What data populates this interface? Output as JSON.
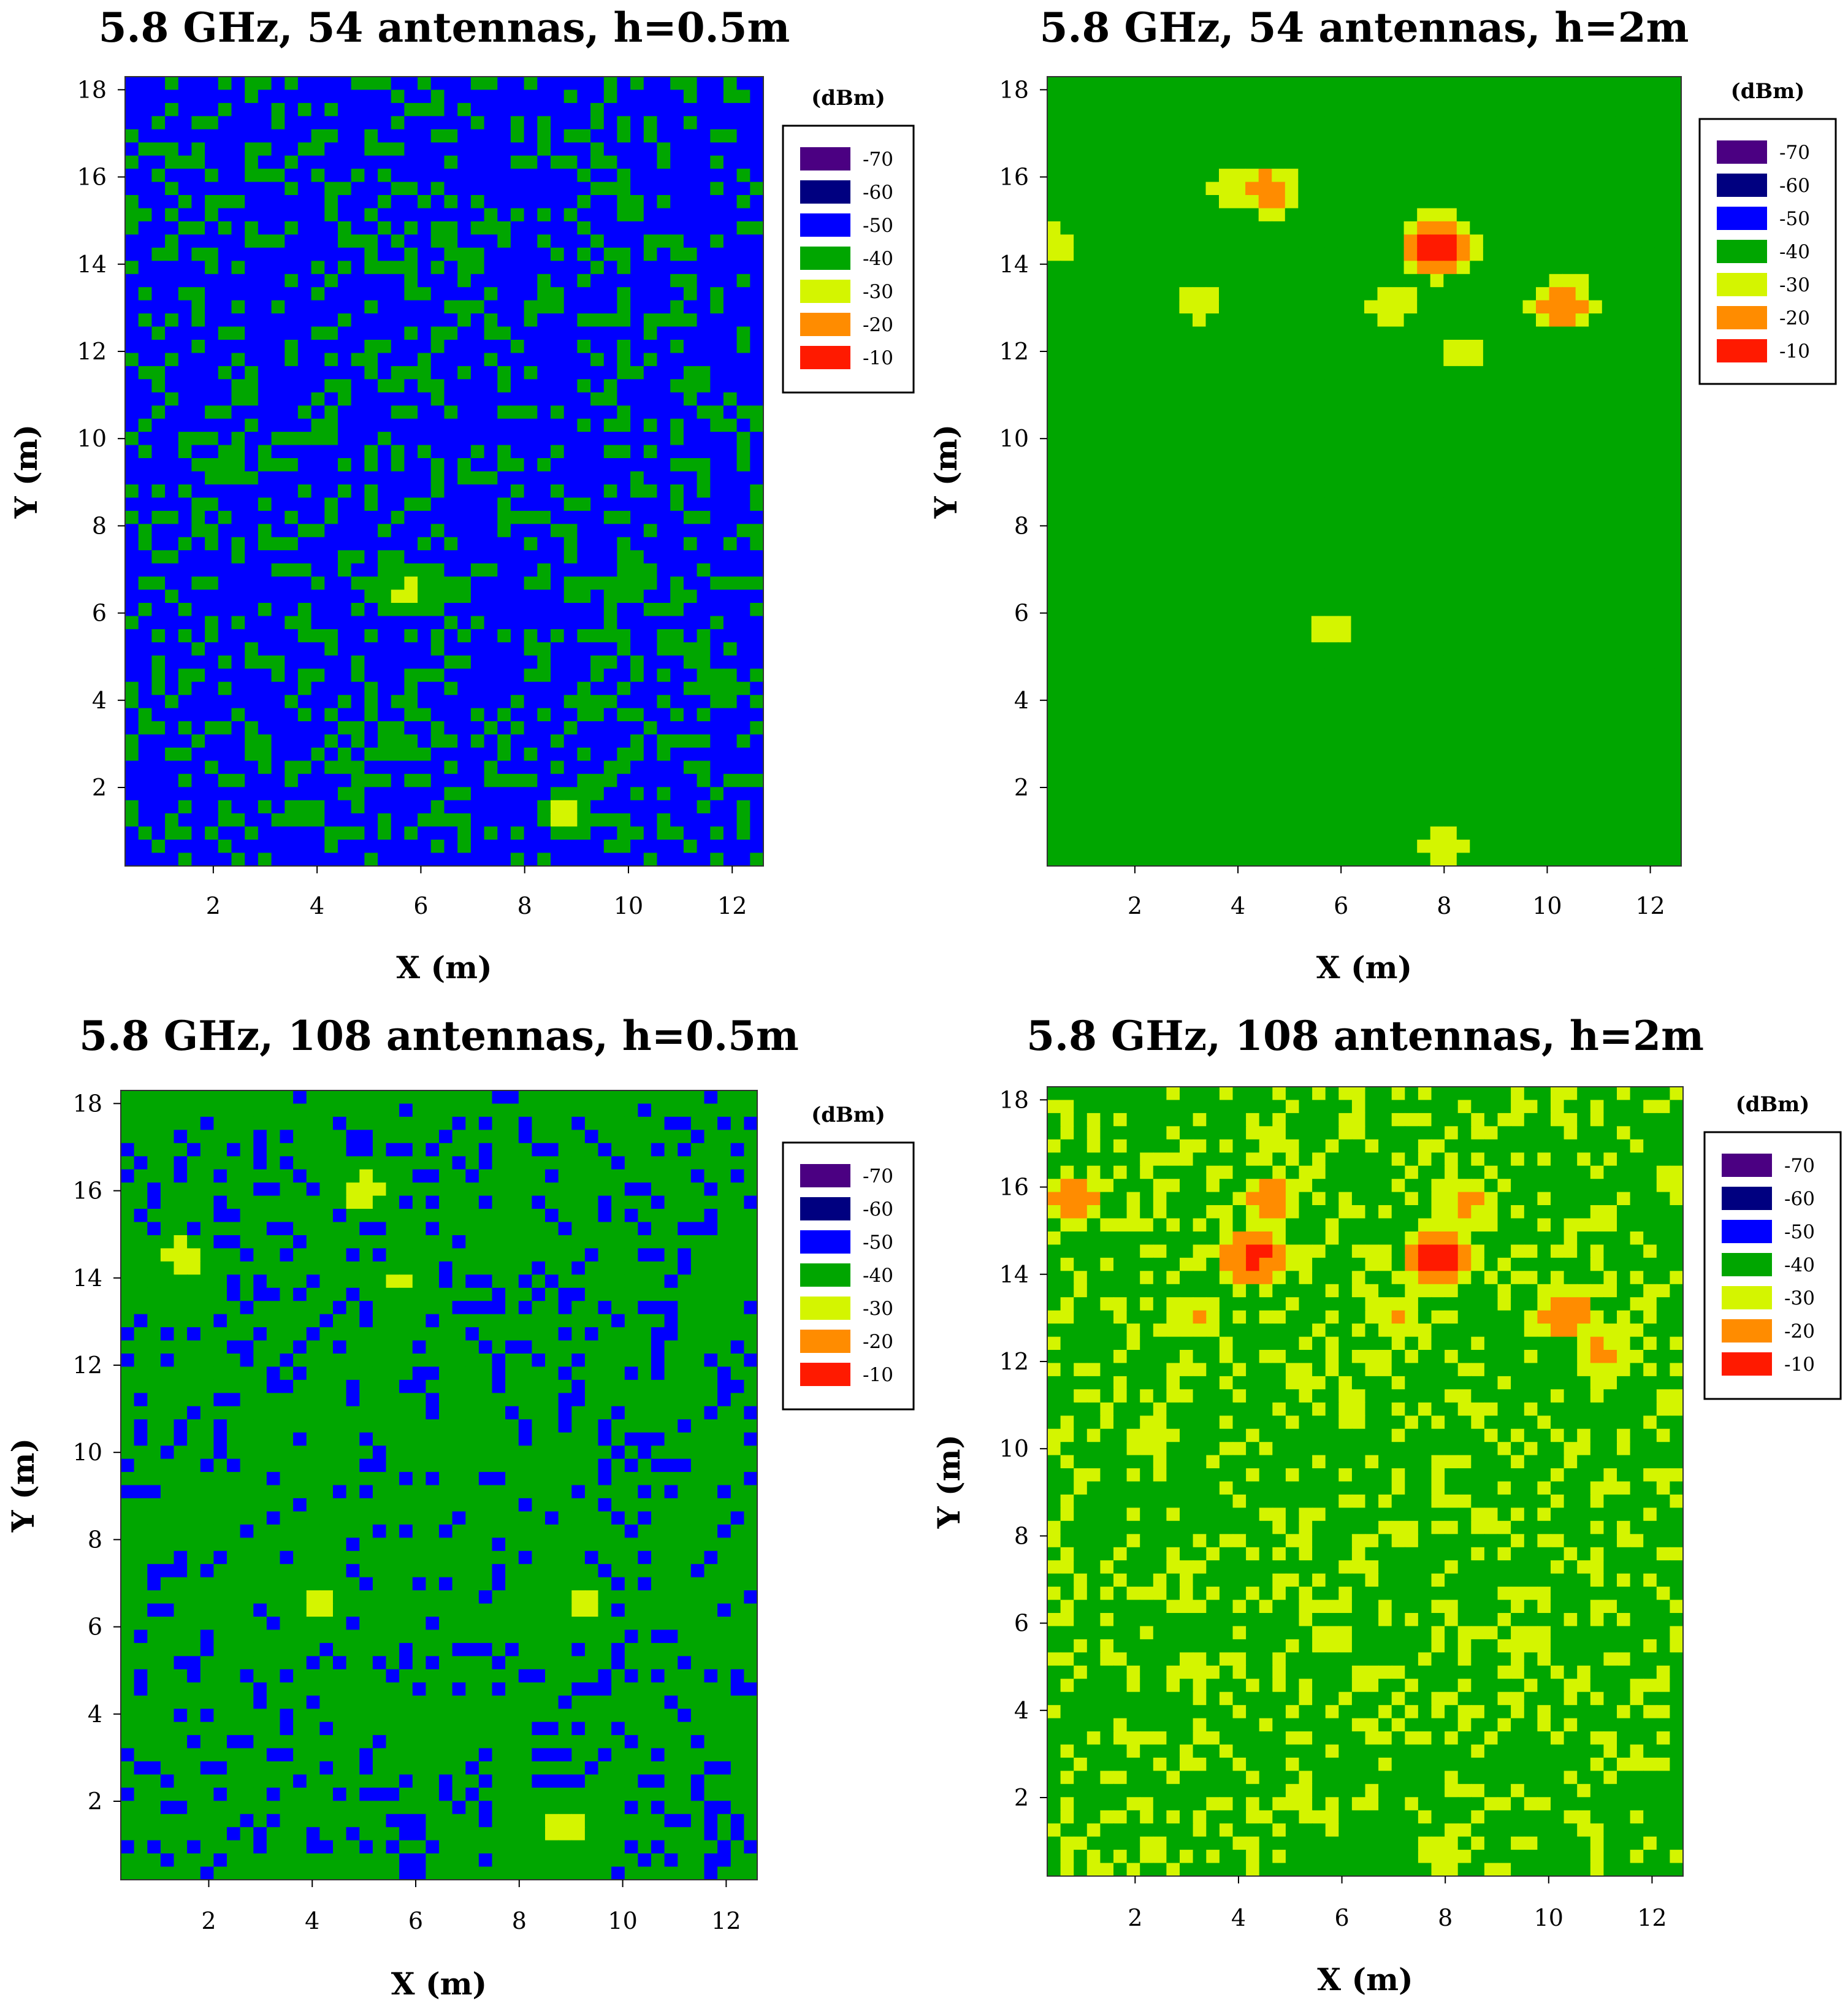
{
  "chart_data": [
    {
      "type": "heatmap",
      "title": "5.8 GHz, 54 antennas, h=0.5m",
      "xlabel": "X (m)",
      "ylabel": "Y (m)",
      "xlim": [
        0.3,
        12.6
      ],
      "ylim": [
        0.2,
        18.3
      ],
      "xticks": [
        2,
        4,
        6,
        8,
        10,
        12
      ],
      "yticks": [
        2,
        4,
        6,
        8,
        10,
        12,
        14,
        16,
        18
      ],
      "base_level": -47,
      "hotspots": [
        {
          "x": 5.8,
          "y": 6.5,
          "level": -32
        },
        {
          "x": 8.8,
          "y": 1.4,
          "level": -30
        },
        {
          "x": 10.0,
          "y": 6.5,
          "level": -38
        },
        {
          "x": 5.5,
          "y": 3.0,
          "level": -40
        }
      ]
    },
    {
      "type": "heatmap",
      "title": "5.8 GHz, 54 antennas, h=2m",
      "xlabel": "X (m)",
      "ylabel": "Y (m)",
      "xlim": [
        0.3,
        12.6
      ],
      "ylim": [
        0.2,
        18.3
      ],
      "xticks": [
        2,
        4,
        6,
        8,
        10,
        12
      ],
      "yticks": [
        2,
        4,
        6,
        8,
        10,
        12,
        14,
        16,
        18
      ],
      "base_level": -40,
      "hotspots": [
        {
          "x": 7.9,
          "y": 14.4,
          "level": -10
        },
        {
          "x": 10.3,
          "y": 13.1,
          "level": -18
        },
        {
          "x": 4.6,
          "y": 15.7,
          "level": -20
        },
        {
          "x": 3.9,
          "y": 15.7,
          "level": -26
        },
        {
          "x": 3.2,
          "y": 13.1,
          "level": -28
        },
        {
          "x": 7.0,
          "y": 13.1,
          "level": -27
        },
        {
          "x": 5.8,
          "y": 5.6,
          "level": -29
        },
        {
          "x": 8.0,
          "y": 0.6,
          "level": -28
        },
        {
          "x": 0.4,
          "y": 14.5,
          "level": -28
        },
        {
          "x": 8.4,
          "y": 12.0,
          "level": -30
        }
      ]
    },
    {
      "type": "heatmap",
      "title": "5.8 GHz, 108 antennas, h=0.5m",
      "xlabel": "X (m)",
      "ylabel": "Y (m)",
      "xlim": [
        0.3,
        12.6
      ],
      "ylim": [
        0.2,
        18.3
      ],
      "xticks": [
        2,
        4,
        6,
        8,
        10,
        12
      ],
      "yticks": [
        2,
        4,
        6,
        8,
        10,
        12,
        14,
        16,
        18
      ],
      "base_level": -42,
      "hotspots": [
        {
          "x": 5.0,
          "y": 16.0,
          "level": -30
        },
        {
          "x": 1.5,
          "y": 14.5,
          "level": -30
        },
        {
          "x": 8.8,
          "y": 1.4,
          "level": -28
        },
        {
          "x": 4.1,
          "y": 6.5,
          "level": -31
        },
        {
          "x": 9.3,
          "y": 6.5,
          "level": -31
        },
        {
          "x": 5.7,
          "y": 14.0,
          "level": -33
        }
      ]
    },
    {
      "type": "heatmap",
      "title": "5.8 GHz, 108 antennas, h=2m",
      "xlabel": "X (m)",
      "ylabel": "Y (m)",
      "xlim": [
        0.3,
        12.6
      ],
      "ylim": [
        0.2,
        18.3
      ],
      "xticks": [
        2,
        4,
        6,
        8,
        10,
        12
      ],
      "yticks": [
        2,
        4,
        6,
        8,
        10,
        12,
        14,
        16,
        18
      ],
      "base_level": -37,
      "hotspots": [
        {
          "x": 7.9,
          "y": 14.4,
          "level": -9
        },
        {
          "x": 4.3,
          "y": 14.4,
          "level": -12
        },
        {
          "x": 10.3,
          "y": 13.1,
          "level": -17
        },
        {
          "x": 0.8,
          "y": 15.7,
          "level": -18
        },
        {
          "x": 4.6,
          "y": 15.7,
          "level": -19
        },
        {
          "x": 8.4,
          "y": 15.7,
          "level": -22
        },
        {
          "x": 3.2,
          "y": 13.1,
          "level": -24
        },
        {
          "x": 7.0,
          "y": 13.1,
          "level": -24
        },
        {
          "x": 2.3,
          "y": 10.3,
          "level": -27
        },
        {
          "x": 5.8,
          "y": 5.6,
          "level": -29
        },
        {
          "x": 9.6,
          "y": 5.6,
          "level": -29
        },
        {
          "x": 8.0,
          "y": 0.6,
          "level": -27
        },
        {
          "x": 11.0,
          "y": 12.2,
          "level": -22
        }
      ]
    }
  ],
  "legend": {
    "title": "(dBm)",
    "entries": [
      {
        "label": "-70",
        "color": "#4b0082"
      },
      {
        "label": "-60",
        "color": "#000080"
      },
      {
        "label": "-50",
        "color": "#0000ff"
      },
      {
        "label": "-40",
        "color": "#00a600"
      },
      {
        "label": "-30",
        "color": "#d4f500"
      },
      {
        "label": "-20",
        "color": "#ff8c00"
      },
      {
        "label": "-10",
        "color": "#ff1a00"
      }
    ]
  }
}
